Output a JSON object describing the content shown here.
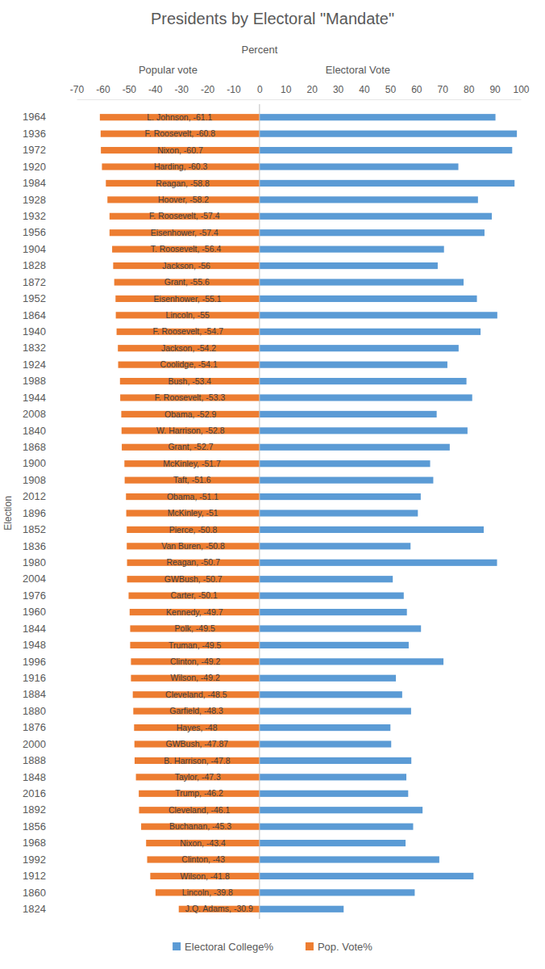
{
  "chart_data": {
    "type": "bar",
    "orientation": "horizontal",
    "title": "Presidents by Electoral \"Mandate\"",
    "x_label": "Percent",
    "y_label": "Election",
    "annotations": [
      "Popular vote",
      "Electoral Vote"
    ],
    "categories": [
      "1964",
      "1936",
      "1972",
      "1920",
      "1984",
      "1928",
      "1932",
      "1956",
      "1904",
      "1828",
      "1872",
      "1952",
      "1864",
      "1940",
      "1832",
      "1924",
      "1988",
      "1944",
      "2008",
      "1840",
      "1868",
      "1900",
      "1908",
      "2012",
      "1896",
      "1852",
      "1836",
      "1980",
      "2004",
      "1976",
      "1960",
      "1844",
      "1948",
      "1996",
      "1916",
      "1884",
      "1880",
      "1876",
      "2000",
      "1888",
      "1848",
      "2016",
      "1892",
      "1856",
      "1968",
      "1992",
      "1912",
      "1860",
      "1824"
    ],
    "series": [
      {
        "name": "Electoral College%",
        "color": "#5b9bd5",
        "values": [
          90.3,
          98.5,
          96.7,
          76.1,
          97.6,
          83.6,
          88.9,
          86.1,
          70.6,
          68.2,
          78.1,
          83.2,
          91.0,
          84.6,
          76.2,
          71.9,
          79.2,
          81.4,
          67.8,
          79.6,
          72.8,
          65.3,
          66.5,
          61.7,
          60.6,
          85.8,
          57.8,
          90.9,
          51.0,
          55.2,
          56.4,
          61.8,
          57.1,
          70.4,
          52.2,
          54.6,
          58.0,
          50.1,
          50.4,
          58.1,
          56.2,
          56.9,
          62.4,
          58.8,
          55.9,
          68.8,
          81.9,
          59.4,
          32.2
        ]
      },
      {
        "name": "Pop. Vote%",
        "color": "#ed7d31",
        "values": [
          -61.1,
          -60.8,
          -60.7,
          -60.3,
          -58.8,
          -58.2,
          -57.4,
          -57.4,
          -56.4,
          -56,
          -55.6,
          -55.1,
          -55,
          -54.7,
          -54.2,
          -54.1,
          -53.4,
          -53.3,
          -52.9,
          -52.8,
          -52.7,
          -51.7,
          -51.6,
          -51.1,
          -51,
          -50.8,
          -50.8,
          -50.7,
          -50.7,
          -50.1,
          -49.7,
          -49.5,
          -49.5,
          -49.2,
          -49.2,
          -48.5,
          -48.3,
          -48,
          -47.87,
          -47.8,
          -47.3,
          -46.2,
          -46.1,
          -45.3,
          -43.4,
          -43,
          -41.8,
          -39.8,
          -30.9
        ],
        "value_labels": [
          "L. Johnson, -61.1",
          "F. Roosevelt, -60.8",
          "Nixon, -60.7",
          "Harding, -60.3",
          "Reagan, -58.8",
          "Hoover, -58.2",
          "F. Roosevelt, -57.4",
          "Eisenhower, -57.4",
          "T. Roosevelt, -56.4",
          "Jackson, -56",
          "Grant, -55.6",
          "Eisenhower, -55.1",
          "Lincoln, -55",
          "F. Roosevelt, -54.7",
          "Jackson, -54.2",
          "Coolidge, -54.1",
          "Bush, -53.4",
          "F. Roosevelt, -53.3",
          "Obama, -52.9",
          "W. Harrison, -52.8",
          "Grant, -52.7",
          "McKinley, -51.7",
          "Taft, -51.6",
          "Obama, -51.1",
          "McKinley, -51",
          "Pierce, -50.8",
          "Van Buren, -50.8",
          "Reagan, -50.7",
          "GWBush, -50.7",
          "Carter, -50.1",
          "Kennedy, -49.7",
          "Polk, -49.5",
          "Truman, -49.5",
          "Clinton, -49.2",
          "Wilson, -49.2",
          "Cleveland, -48.5",
          "Garfield, -48.3",
          "Hayes, -48",
          "GWBush, -47.87",
          "B. Harrison, -47.8",
          "Taylor, -47.3",
          "Trump, -46.2",
          "Cleveland, -46.1",
          "Buchanan, -45.3",
          "Nixon, -43.4",
          "Clinton, -43",
          "Wilson, -41.8",
          "Lincoln, -39.8",
          "J.Q. Adams, -30.9"
        ]
      }
    ],
    "xlim": [
      -70,
      100
    ],
    "xticks": [
      -70,
      -60,
      -50,
      -40,
      -30,
      -20,
      -10,
      0,
      10,
      20,
      30,
      40,
      50,
      60,
      70,
      80,
      90,
      100
    ],
    "grid": false,
    "data_labels": true,
    "legend": "bottom"
  }
}
